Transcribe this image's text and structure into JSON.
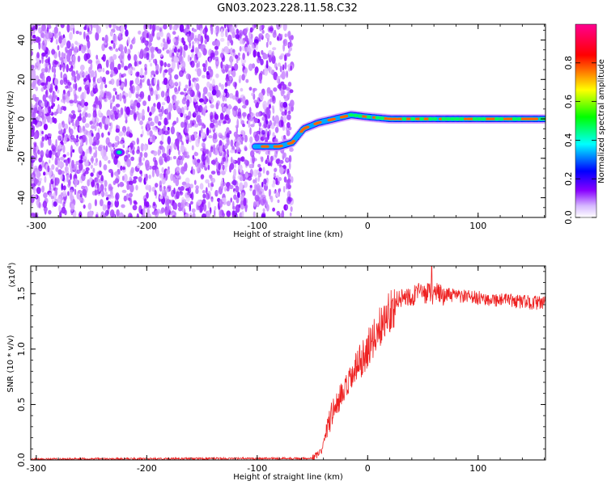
{
  "figure": {
    "title": "GN03.2023.228.11.58.C32"
  },
  "chart_data": [
    {
      "type": "heatmap",
      "xlabel": "Height of straight line (km)",
      "ylabel": "Frequency (Hz)",
      "xlim": [
        -305,
        161
      ],
      "ylim": [
        -50,
        48
      ],
      "x_ticks": [
        -300,
        -200,
        -100,
        0,
        100
      ],
      "x_tick_labels": [
        "-300",
        "-200",
        "-100",
        "0",
        "100"
      ],
      "y_ticks": [
        -40,
        -20,
        0,
        20,
        40
      ],
      "y_tick_labels": [
        "-40",
        "-20",
        "0",
        "20",
        "40"
      ],
      "colorbar": {
        "label": "Normalized spectral amplitude",
        "range": [
          0,
          1
        ],
        "ticks": [
          0.0,
          0.2,
          0.4,
          0.6,
          0.8
        ],
        "tick_labels": [
          "0.0",
          "0.2",
          "0.4",
          "0.6",
          "0.8"
        ],
        "colors": [
          "#ffffff",
          "#8800ff",
          "#0000ff",
          "#00ffff",
          "#00ff00",
          "#ffff00",
          "#ff0000",
          "#ff0090"
        ]
      },
      "noise_region": {
        "x_range": [
          -305,
          -68
        ],
        "freq_range": [
          -50,
          48
        ]
      },
      "feature": {
        "description_points": [
          {
            "x": -225,
            "freq": -17
          },
          {
            "x": -100,
            "freq": -14
          },
          {
            "x": -80,
            "freq": -14
          },
          {
            "x": -68,
            "freq": -12
          },
          {
            "x": -58,
            "freq": -5
          },
          {
            "x": -45,
            "freq": -2
          },
          {
            "x": -30,
            "freq": 0
          },
          {
            "x": -15,
            "freq": 2
          },
          {
            "x": 0,
            "freq": 1
          },
          {
            "x": 20,
            "freq": 0
          },
          {
            "x": 161,
            "freq": 0
          }
        ]
      },
      "grid": false
    },
    {
      "type": "line",
      "xlabel": "Height of straight line (km)",
      "ylabel": "SNR (10 * v/v)",
      "y_multiplier_label": "(x10",
      "y_multiplier_exp": "4",
      "xlim": [
        -305,
        161
      ],
      "ylim": [
        0,
        17500
      ],
      "x_ticks": [
        -300,
        -200,
        -100,
        0,
        100
      ],
      "x_tick_labels": [
        "-300",
        "-200",
        "-100",
        "0",
        "100"
      ],
      "y_ticks": [
        0,
        5000,
        10000,
        15000
      ],
      "y_tick_labels": [
        "0.0",
        "0.5",
        "1.0",
        "1.5"
      ],
      "series": [
        {
          "color": "#ee2222",
          "envelope": [
            {
              "x": -305,
              "y": 80
            },
            {
              "x": -50,
              "y": 150
            },
            {
              "x": -42,
              "y": 700
            },
            {
              "x": -38,
              "y": 2500
            },
            {
              "x": -30,
              "y": 4800
            },
            {
              "x": -20,
              "y": 6200
            },
            {
              "x": -10,
              "y": 8300
            },
            {
              "x": 0,
              "y": 10000
            },
            {
              "x": 10,
              "y": 11800
            },
            {
              "x": 20,
              "y": 13500
            },
            {
              "x": 30,
              "y": 14600
            },
            {
              "x": 45,
              "y": 15000
            },
            {
              "x": 60,
              "y": 15000
            },
            {
              "x": 100,
              "y": 14600
            },
            {
              "x": 161,
              "y": 14100
            }
          ],
          "peak": {
            "x": 58,
            "y": 17500
          }
        }
      ],
      "grid": false
    }
  ]
}
